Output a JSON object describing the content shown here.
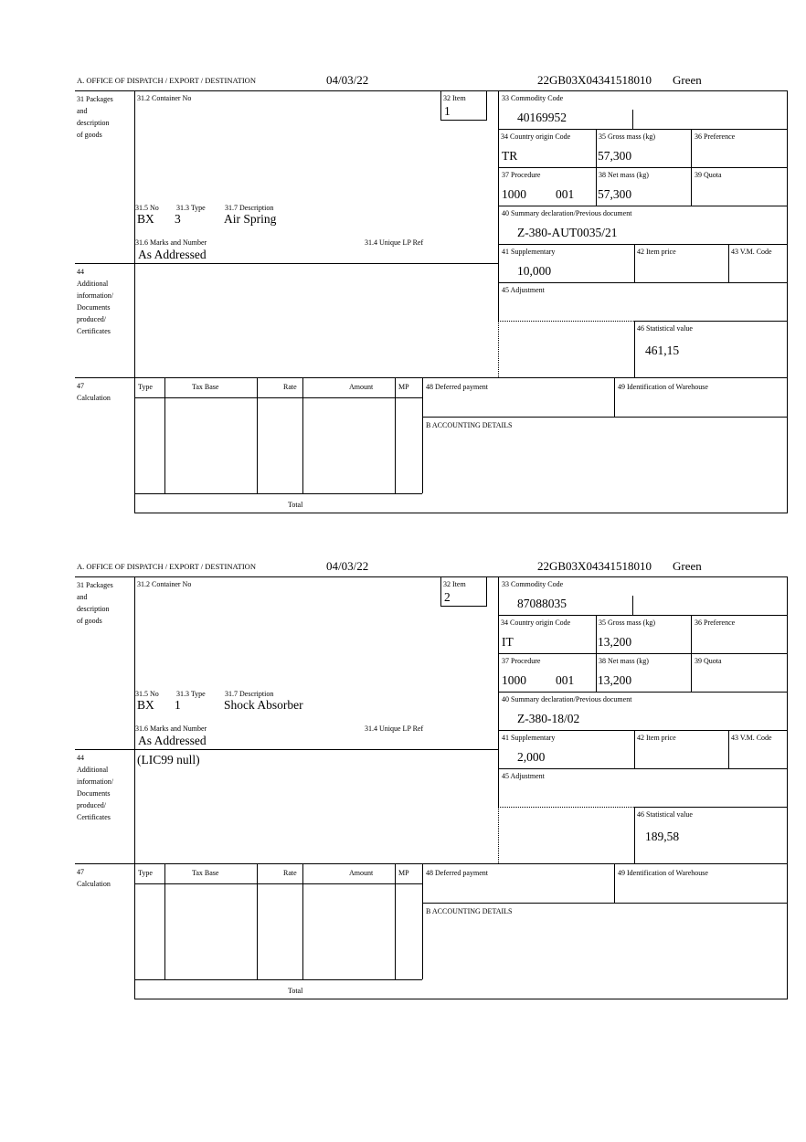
{
  "labels": {
    "office": "A. OFFICE OF DISPATCH / EXPORT / DESTINATION",
    "packages": "31 Packages\nand\ndescription\nof goods",
    "container_no": "31.2 Container No",
    "item": "32 Item",
    "no": "31.5 No",
    "type": "31.3 Type",
    "description": "31.7 Description",
    "marks": "31.6 Marks and Number",
    "unique_ref": "31.4 Unique LP Ref",
    "commodity_code": "33 Commodity Code",
    "country_origin": "34 Country origin Code",
    "gross_mass": "35 Gross mass (kg)",
    "preference": "36 Preference",
    "procedure": "37 Procedure",
    "net_mass": "38 Net mass (kg)",
    "quota": "39 Quota",
    "summary_decl": "40 Summary declaration/Previous document",
    "supplementary": "41 Supplementary",
    "item_price": "42 Item price",
    "vm_code": "43 V.M. Code",
    "additional_info": "44\nAdditional\ninformation/\nDocuments\nproduced/\nCertificates",
    "adjustment": "45 Adjustment",
    "statistical_value": "46 Statistical value",
    "calculation": "47\nCalculation",
    "calc_type": "Type",
    "tax_base": "Tax Base",
    "rate": "Rate",
    "amount": "Amount",
    "mp": "MP",
    "deferred_payment": "48 Deferred payment",
    "warehouse": "49 Identification of Warehouse",
    "accounting": "B ACCOUNTING DETAILS",
    "total": "Total"
  },
  "forms": [
    {
      "date": "04/03/22",
      "reference": "22GB03X04341518010",
      "route": "Green",
      "item": "1",
      "pkg_type": "BX",
      "pkg_count": "3",
      "description": "Air Spring",
      "marks": "As Addressed",
      "commodity_code": "40169952",
      "country_origin": "TR",
      "gross_mass": "57,300",
      "procedure": "1000",
      "procedure_additional": "001",
      "net_mass": "57,300",
      "summary_decl": "Z-380-AUT0035/21",
      "supplementary": "10,000",
      "additional_info": "",
      "statistical_value": "461,15"
    },
    {
      "date": "04/03/22",
      "reference": "22GB03X04341518010",
      "route": "Green",
      "item": "2",
      "pkg_type": "BX",
      "pkg_count": "1",
      "description": "Shock Absorber",
      "marks": "As Addressed",
      "commodity_code": "87088035",
      "country_origin": "IT",
      "gross_mass": "13,200",
      "procedure": "1000",
      "procedure_additional": "001",
      "net_mass": "13,200",
      "summary_decl": "Z-380-18/02",
      "supplementary": "2,000",
      "additional_info": "(LIC99 null)",
      "statistical_value": "189,58"
    }
  ]
}
